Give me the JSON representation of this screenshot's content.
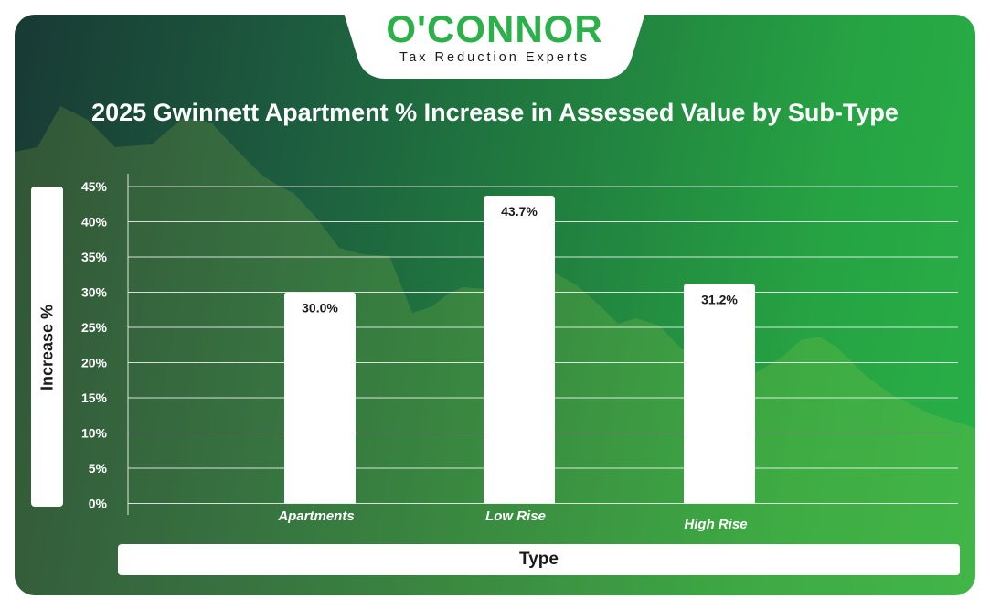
{
  "brand": {
    "name": "O'CONNOR",
    "tagline": "Tax Reduction Experts",
    "primary_color": "#2bb04a",
    "logo_icon": "house-key-icon"
  },
  "chart_data": {
    "type": "bar",
    "title": "2025 Gwinnett Apartment % Increase in Assessed Value by Sub-Type",
    "xlabel": "Type",
    "ylabel": "Increase %",
    "categories": [
      "Apartments",
      "Low Rise",
      "High Rise"
    ],
    "values": [
      30.0,
      43.7,
      31.2
    ],
    "value_labels": [
      "30.0%",
      "43.7%",
      "31.2%"
    ],
    "ylim": [
      0,
      45
    ],
    "yticks": [
      0,
      5,
      10,
      15,
      20,
      25,
      30,
      35,
      40,
      45
    ],
    "ytick_labels": [
      "0%",
      "5%",
      "10%",
      "15%",
      "20%",
      "25%",
      "30%",
      "35%",
      "40%",
      "45%"
    ],
    "grid": true,
    "bar_color": "#ffffff"
  }
}
